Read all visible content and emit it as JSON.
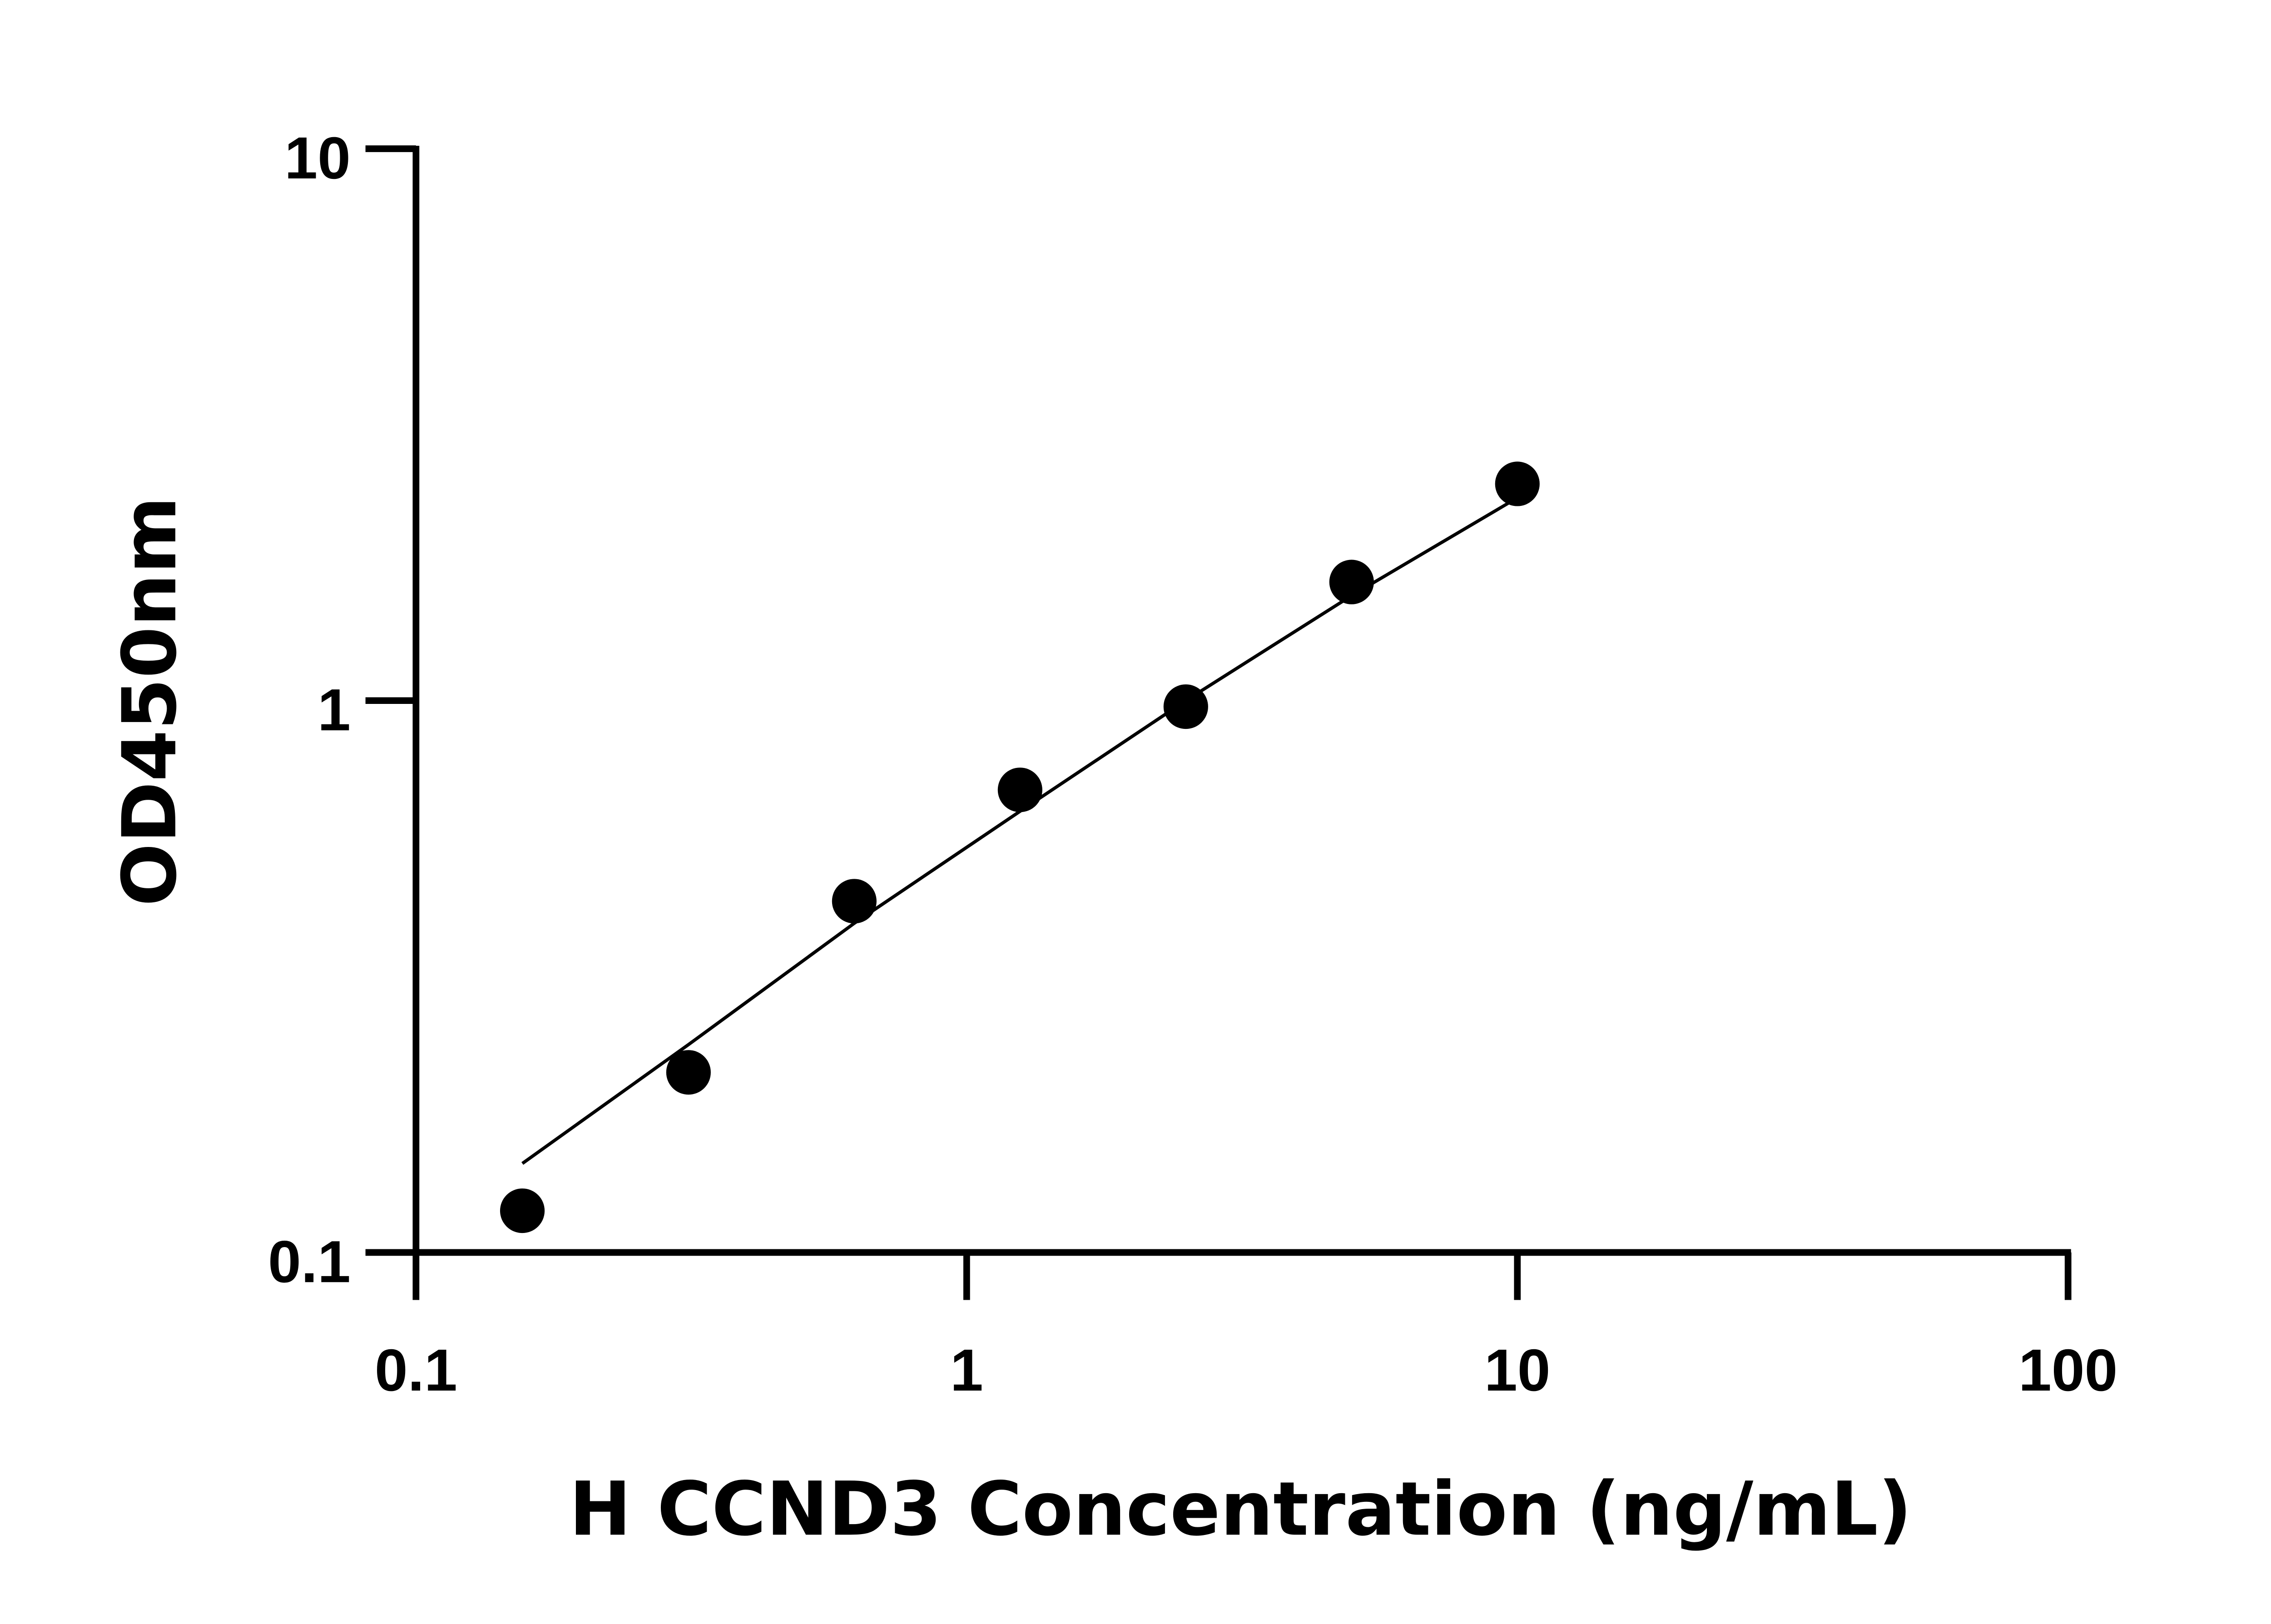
{
  "chart_data": {
    "type": "scatter",
    "xlabel": "H CCND3 Concentration (ng/mL)",
    "ylabel": "OD450nm",
    "xscale": "log",
    "yscale": "log",
    "xlim": [
      0.1,
      100
    ],
    "ylim": [
      0.1,
      10
    ],
    "x_ticks": [
      "0.1",
      "1",
      "10",
      "100"
    ],
    "y_ticks": [
      "0.1",
      "1",
      "10"
    ],
    "grid": false,
    "series": [
      {
        "x": [
          0.156,
          0.3125,
          0.625,
          1.25,
          2.5,
          5,
          10
        ],
        "y": [
          0.119,
          0.212,
          0.433,
          0.689,
          0.975,
          1.64,
          2.47
        ],
        "marker": "circle",
        "color": "#000000"
      }
    ],
    "fit_curve": {
      "x": [
        0.156,
        0.3125,
        0.625,
        1.25,
        2.5,
        5,
        10
      ],
      "y": [
        0.145,
        0.238,
        0.395,
        0.63,
        1.0,
        1.55,
        2.33
      ],
      "color": "#000000"
    }
  }
}
